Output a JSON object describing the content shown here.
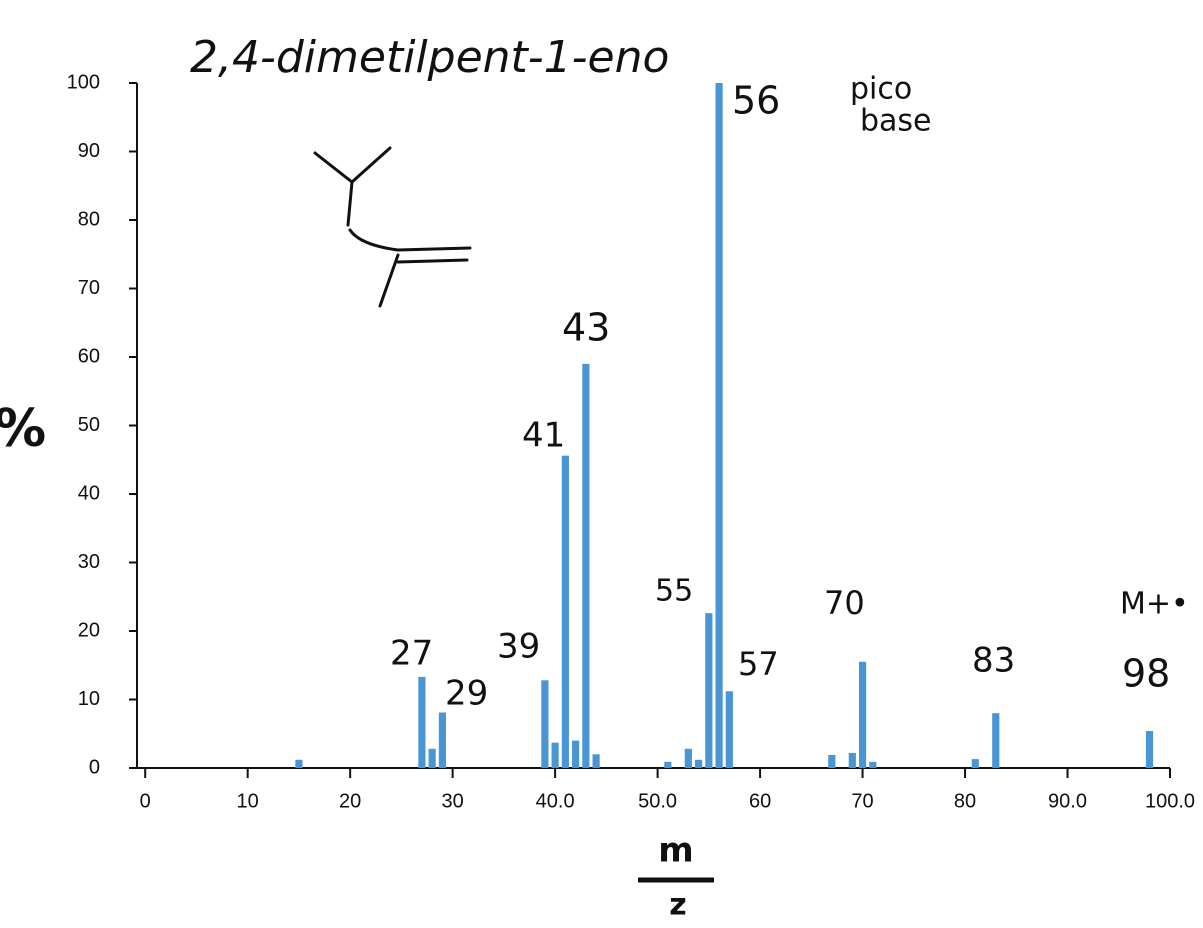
{
  "chart_data": {
    "type": "bar",
    "title": "2,4-dimetilpent-1-eno",
    "x_label": {
      "numerator": "m",
      "denominator": "z"
    },
    "y_label": "%",
    "x": [
      15,
      27,
      28,
      29,
      39,
      40,
      41,
      42,
      43,
      44,
      51,
      53,
      54,
      55,
      56,
      57,
      67,
      69,
      70,
      71,
      81,
      83,
      98
    ],
    "values": [
      1.2,
      13.3,
      2.8,
      8.1,
      12.8,
      3.7,
      45.6,
      4.0,
      59.0,
      2.0,
      0.9,
      2.8,
      1.2,
      22.6,
      100,
      11.2,
      1.9,
      2.2,
      15.5,
      0.9,
      1.3,
      8.0,
      5.4
    ],
    "color": "#4a95d3",
    "xlim": [
      -0.8,
      100
    ],
    "ylim": [
      0,
      100
    ],
    "xticks": [
      0,
      10,
      20,
      30,
      {
        "value": 40,
        "label": "40.0"
      },
      {
        "value": 50,
        "label": "50.0"
      },
      60,
      70,
      80,
      {
        "value": 90,
        "label": "90.0"
      },
      {
        "value": 100,
        "label": "100.0"
      }
    ],
    "yticks": [
      0,
      10,
      20,
      30,
      40,
      50,
      60,
      70,
      80,
      90,
      100
    ],
    "annotations": [
      "27",
      "29",
      "39",
      "41",
      "43",
      "55",
      "56",
      "57",
      "70",
      "83",
      "98",
      "pico",
      "base",
      "M+•"
    ]
  }
}
